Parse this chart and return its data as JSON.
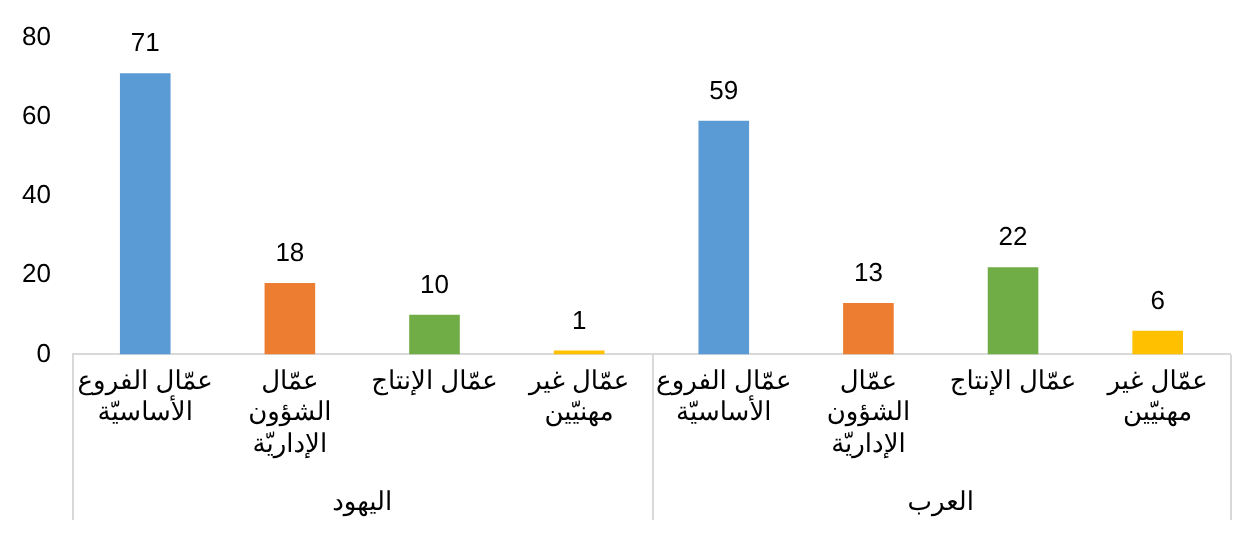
{
  "chart_data": {
    "type": "bar",
    "categories": [
      "عمّال الفروع الأساسيّة",
      "عمّال الشؤون الإداريّة",
      "عمّال الإنتاج",
      "عمّال غير مهنيّين",
      "عمّال الفروع الأساسيّة",
      "عمّال الشؤون الإداريّة",
      "عمّال الإنتاج",
      "عمّال غير مهنيّين"
    ],
    "values": [
      71,
      18,
      10,
      1,
      59,
      13,
      22,
      6
    ],
    "colors": [
      "#5b9bd5",
      "#ed7d31",
      "#70ad47",
      "#ffc000",
      "#5b9bd5",
      "#ed7d31",
      "#70ad47",
      "#ffc000"
    ],
    "ylim": [
      0,
      80
    ],
    "yticks": [
      0,
      20,
      40,
      60,
      80
    ],
    "grid": false,
    "legend": false,
    "data_labels": true,
    "annotations": [
      "اليهود",
      "العرب"
    ]
  }
}
